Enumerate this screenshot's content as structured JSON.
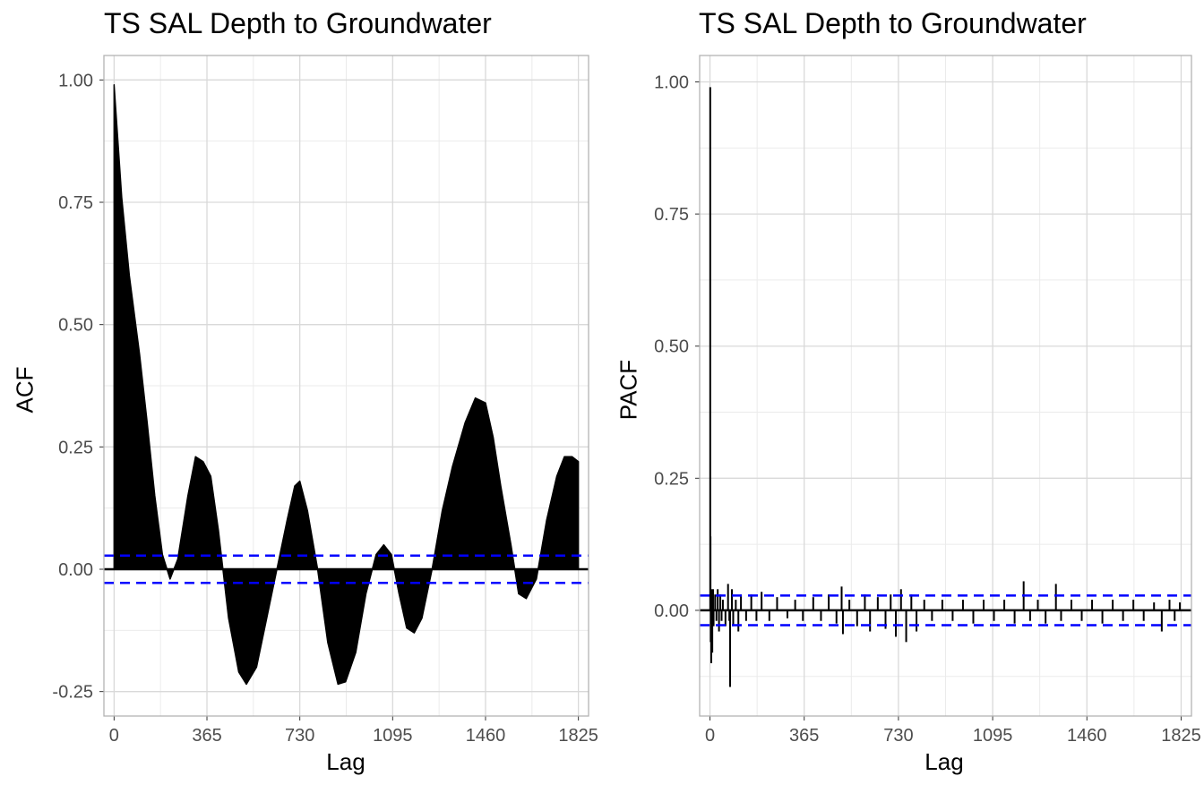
{
  "chart_data": [
    {
      "type": "bar",
      "title": "TS SAL Depth to Groundwater",
      "xlabel": "Lag",
      "ylabel": "ACF",
      "xlim": [
        -40,
        1865
      ],
      "ylim": [
        -0.3,
        1.05
      ],
      "x_ticks": [
        "0",
        "365",
        "730",
        "1095",
        "1460",
        "1825"
      ],
      "x_tick_values": [
        0,
        365,
        730,
        1095,
        1460,
        1825
      ],
      "y_ticks": [
        "-0.25",
        "0.00",
        "0.25",
        "0.50",
        "0.75",
        "1.00"
      ],
      "y_tick_values": [
        -0.25,
        0,
        0.25,
        0.5,
        0.75,
        1.0
      ],
      "confidence_bound": 0.028,
      "grid": true,
      "series_color": "#000000",
      "bound_color": "#0000FF",
      "profile": [
        [
          0,
          0.99
        ],
        [
          30,
          0.76
        ],
        [
          60,
          0.6
        ],
        [
          100,
          0.44
        ],
        [
          130,
          0.3
        ],
        [
          160,
          0.15
        ],
        [
          190,
          0.03
        ],
        [
          220,
          -0.02
        ],
        [
          250,
          0.02
        ],
        [
          290,
          0.15
        ],
        [
          320,
          0.23
        ],
        [
          350,
          0.22
        ],
        [
          380,
          0.19
        ],
        [
          410,
          0.08
        ],
        [
          450,
          -0.1
        ],
        [
          490,
          -0.21
        ],
        [
          520,
          -0.235
        ],
        [
          560,
          -0.2
        ],
        [
          600,
          -0.1
        ],
        [
          640,
          0.0
        ],
        [
          680,
          0.1
        ],
        [
          710,
          0.17
        ],
        [
          730,
          0.18
        ],
        [
          760,
          0.12
        ],
        [
          800,
          0.0
        ],
        [
          840,
          -0.15
        ],
        [
          880,
          -0.235
        ],
        [
          910,
          -0.23
        ],
        [
          950,
          -0.17
        ],
        [
          990,
          -0.05
        ],
        [
          1030,
          0.03
        ],
        [
          1060,
          0.05
        ],
        [
          1090,
          0.03
        ],
        [
          1120,
          -0.05
        ],
        [
          1150,
          -0.12
        ],
        [
          1180,
          -0.13
        ],
        [
          1210,
          -0.1
        ],
        [
          1250,
          0.0
        ],
        [
          1290,
          0.12
        ],
        [
          1330,
          0.21
        ],
        [
          1380,
          0.3
        ],
        [
          1420,
          0.35
        ],
        [
          1460,
          0.34
        ],
        [
          1490,
          0.27
        ],
        [
          1520,
          0.17
        ],
        [
          1560,
          0.05
        ],
        [
          1590,
          -0.05
        ],
        [
          1620,
          -0.06
        ],
        [
          1660,
          -0.02
        ],
        [
          1700,
          0.1
        ],
        [
          1740,
          0.19
        ],
        [
          1770,
          0.23
        ],
        [
          1800,
          0.23
        ],
        [
          1825,
          0.22
        ]
      ]
    },
    {
      "type": "bar",
      "title": "TS SAL Depth to Groundwater",
      "xlabel": "Lag",
      "ylabel": "PACF",
      "xlim": [
        -40,
        1865
      ],
      "ylim": [
        -0.2,
        1.05
      ],
      "x_ticks": [
        "0",
        "365",
        "730",
        "1095",
        "1460",
        "1825"
      ],
      "x_tick_values": [
        0,
        365,
        730,
        1095,
        1460,
        1825
      ],
      "y_ticks": [
        "0.00",
        "0.25",
        "0.50",
        "0.75",
        "1.00"
      ],
      "y_tick_values": [
        0,
        0.25,
        0.5,
        0.75,
        1.0
      ],
      "confidence_bound": 0.028,
      "grid": true,
      "series_color": "#000000",
      "bound_color": "#0000FF",
      "spikes": [
        [
          1,
          0.99
        ],
        [
          2,
          0.14
        ],
        [
          3,
          -0.06
        ],
        [
          4,
          0.03
        ],
        [
          5,
          -0.1
        ],
        [
          6,
          0.04
        ],
        [
          7,
          0.02
        ],
        [
          8,
          -0.03
        ],
        [
          9,
          -0.08
        ],
        [
          12,
          0.04
        ],
        [
          14,
          -0.03
        ],
        [
          20,
          0.03
        ],
        [
          25,
          -0.02
        ],
        [
          30,
          0.04
        ],
        [
          35,
          -0.04
        ],
        [
          40,
          0.03
        ],
        [
          45,
          -0.02
        ],
        [
          50,
          0.02
        ],
        [
          60,
          -0.03
        ],
        [
          70,
          0.05
        ],
        [
          75,
          -0.02
        ],
        [
          78,
          -0.145
        ],
        [
          85,
          0.04
        ],
        [
          90,
          -0.03
        ],
        [
          100,
          0.02
        ],
        [
          110,
          -0.04
        ],
        [
          120,
          0.03
        ],
        [
          140,
          -0.02
        ],
        [
          160,
          0.03
        ],
        [
          180,
          -0.02
        ],
        [
          200,
          0.035
        ],
        [
          230,
          -0.02
        ],
        [
          260,
          0.025
        ],
        [
          300,
          -0.015
        ],
        [
          330,
          0.02
        ],
        [
          360,
          -0.02
        ],
        [
          400,
          0.025
        ],
        [
          430,
          -0.02
        ],
        [
          460,
          0.03
        ],
        [
          490,
          -0.025
        ],
        [
          510,
          0.045
        ],
        [
          515,
          -0.045
        ],
        [
          540,
          0.02
        ],
        [
          570,
          -0.03
        ],
        [
          600,
          0.03
        ],
        [
          620,
          -0.04
        ],
        [
          650,
          0.025
        ],
        [
          680,
          -0.035
        ],
        [
          700,
          0.03
        ],
        [
          720,
          -0.05
        ],
        [
          740,
          0.04
        ],
        [
          760,
          -0.06
        ],
        [
          780,
          0.03
        ],
        [
          800,
          -0.04
        ],
        [
          830,
          0.02
        ],
        [
          860,
          -0.02
        ],
        [
          900,
          0.02
        ],
        [
          940,
          -0.02
        ],
        [
          980,
          0.02
        ],
        [
          1020,
          -0.025
        ],
        [
          1060,
          0.02
        ],
        [
          1100,
          -0.02
        ],
        [
          1140,
          0.02
        ],
        [
          1180,
          -0.025
        ],
        [
          1215,
          0.055
        ],
        [
          1240,
          -0.02
        ],
        [
          1270,
          0.02
        ],
        [
          1300,
          -0.025
        ],
        [
          1340,
          0.05
        ],
        [
          1360,
          -0.02
        ],
        [
          1400,
          0.02
        ],
        [
          1440,
          -0.02
        ],
        [
          1480,
          0.02
        ],
        [
          1520,
          -0.025
        ],
        [
          1560,
          0.02
        ],
        [
          1600,
          -0.02
        ],
        [
          1640,
          0.02
        ],
        [
          1680,
          -0.02
        ],
        [
          1720,
          0.015
        ],
        [
          1750,
          -0.04
        ],
        [
          1780,
          0.02
        ],
        [
          1800,
          -0.02
        ],
        [
          1820,
          0.015
        ]
      ]
    }
  ]
}
